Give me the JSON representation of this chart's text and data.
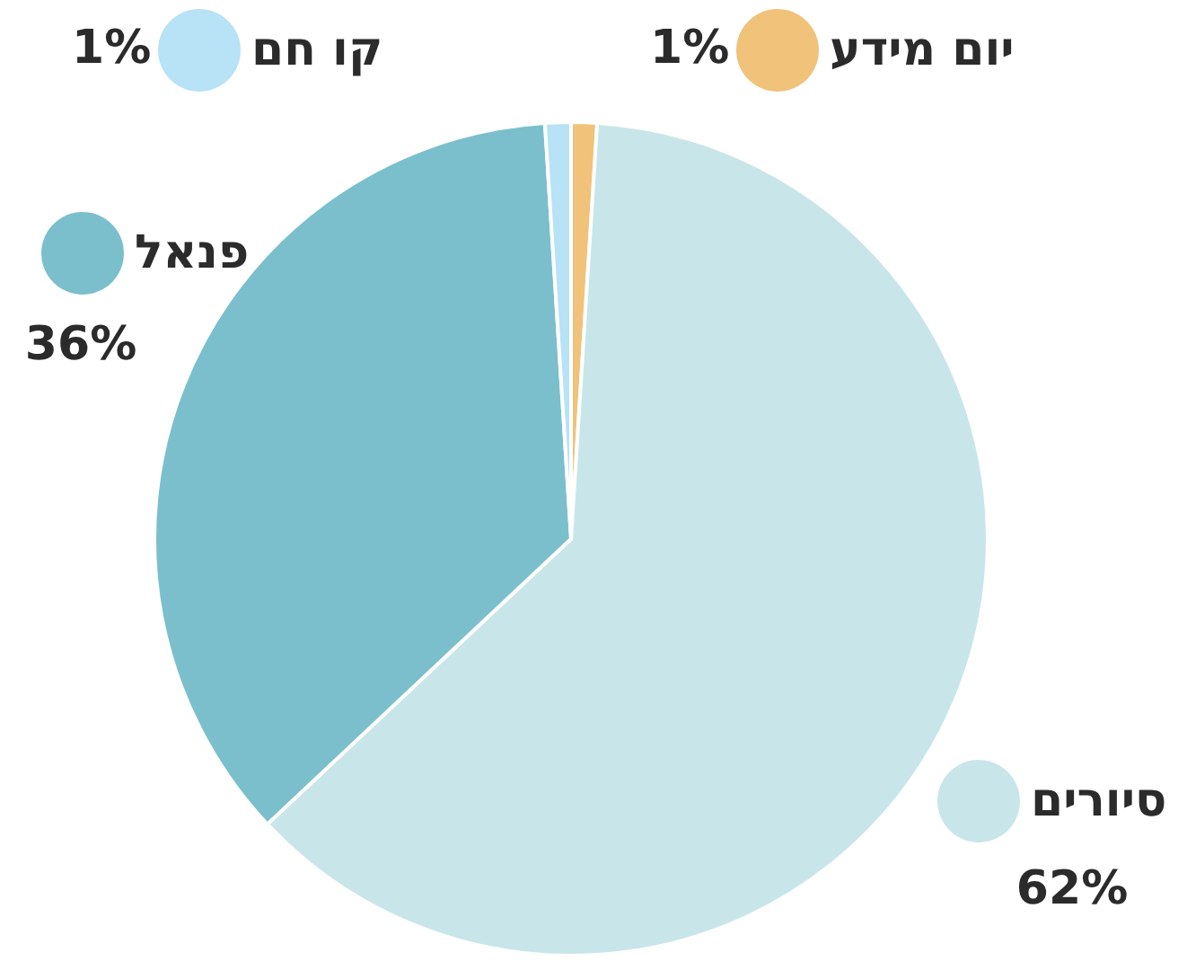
{
  "chart_data": {
    "type": "pie",
    "categories": [
      "יום מידע",
      "סיורים",
      "פנאל",
      "קו חם"
    ],
    "values": [
      1,
      62,
      36,
      1
    ],
    "colors": [
      "#f0c27a",
      "#c8e6ea",
      "#7bbfcc",
      "#b8e2f5"
    ],
    "value_labels": [
      "1%",
      "62%",
      "36%",
      "1%"
    ],
    "legend": "top"
  }
}
